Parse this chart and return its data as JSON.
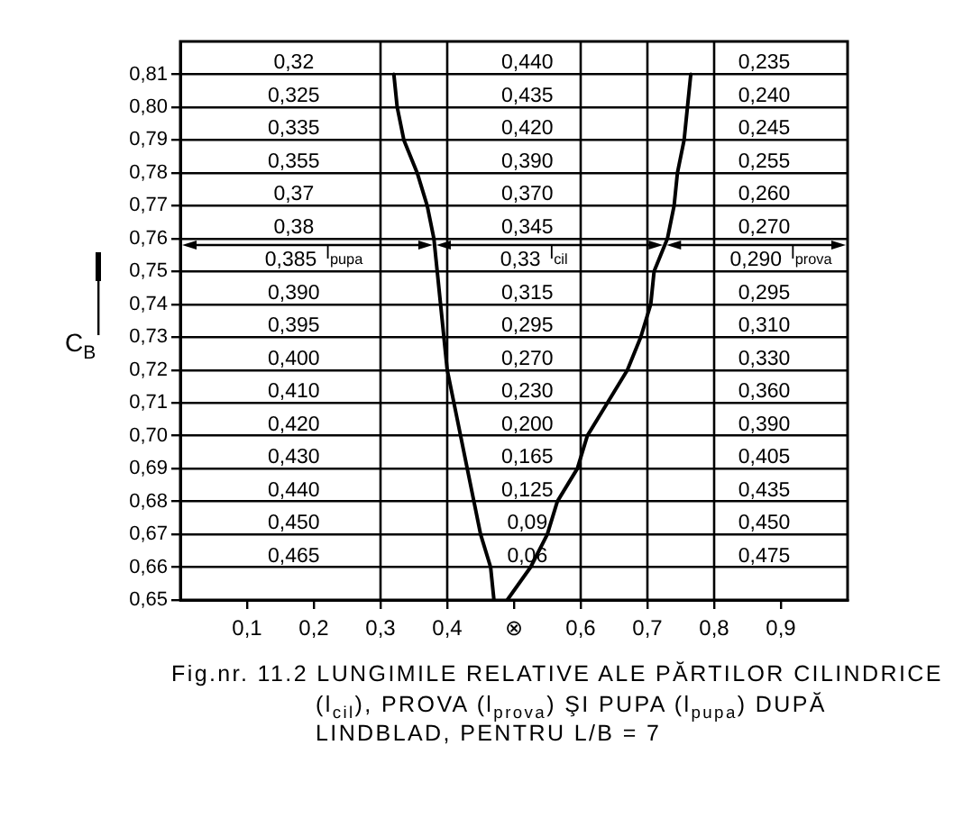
{
  "chart_data": {
    "type": "line",
    "title": "Fig.nr. 11.2 LUNGIMILE RELATIVE ALE PĂRTILOR CILINDRICE (l$_{cil}$), PROVA (l$_{prova}$) ŞI PUPA (l$_{pupa}$) DUPĂ LINDBLAD, PENTRU L/B = 7",
    "ylabel": "C$_{B}$",
    "series": [
      {
        "color": "#000000",
        "x": [
          0.32,
          0.325,
          0.335,
          0.355,
          0.37,
          0.38,
          0.385,
          0.39,
          0.395,
          0.4,
          0.41,
          0.42,
          0.43,
          0.44,
          0.45,
          0.465,
          0.47
        ],
        "values": [
          0.81,
          0.8,
          0.79,
          0.78,
          0.77,
          0.76,
          0.75,
          0.74,
          0.73,
          0.72,
          0.71,
          0.7,
          0.69,
          0.68,
          0.67,
          0.66,
          0.65
        ]
      },
      {
        "color": "#000000",
        "x": [
          0.765,
          0.76,
          0.755,
          0.745,
          0.74,
          0.73,
          0.71,
          0.705,
          0.69,
          0.67,
          0.64,
          0.61,
          0.595,
          0.565,
          0.55,
          0.525,
          0.49
        ],
        "values": [
          0.81,
          0.8,
          0.79,
          0.78,
          0.77,
          0.76,
          0.75,
          0.74,
          0.73,
          0.72,
          0.71,
          0.7,
          0.69,
          0.68,
          0.67,
          0.66,
          0.65
        ]
      }
    ],
    "xlim": [
      0,
      1
    ],
    "xticks": [
      {
        "value": 0.1,
        "label": "0,1"
      },
      {
        "value": 0.2,
        "label": "0,2"
      },
      {
        "value": 0.3,
        "label": "0,3"
      },
      {
        "value": 0.4,
        "label": "0,4"
      },
      {
        "value": 0.5,
        "label": "⊗"
      },
      {
        "value": 0.6,
        "label": "0,6"
      },
      {
        "value": 0.7,
        "label": "0,7"
      },
      {
        "value": 0.8,
        "label": "0,8"
      },
      {
        "value": 0.9,
        "label": "0,9"
      }
    ],
    "ylim": [
      0.65,
      0.82
    ],
    "yticks": [
      {
        "value": 0.65,
        "label": "0,65"
      },
      {
        "value": 0.66,
        "label": "0,66"
      },
      {
        "value": 0.67,
        "label": "0,67"
      },
      {
        "value": 0.68,
        "label": "0,68"
      },
      {
        "value": 0.69,
        "label": "0,69"
      },
      {
        "value": 0.7,
        "label": "0,70"
      },
      {
        "value": 0.71,
        "label": "0,71"
      },
      {
        "value": 0.72,
        "label": "0,72"
      },
      {
        "value": 0.73,
        "label": "0,73"
      },
      {
        "value": 0.74,
        "label": "0,74"
      },
      {
        "value": 0.75,
        "label": "0,75"
      },
      {
        "value": 0.76,
        "label": "0,76"
      },
      {
        "value": 0.77,
        "label": "0,77"
      },
      {
        "value": 0.78,
        "label": "0,78"
      },
      {
        "value": 0.79,
        "label": "0,79"
      },
      {
        "value": 0.8,
        "label": "0,80"
      },
      {
        "value": 0.81,
        "label": "0,81"
      }
    ],
    "grid": "y",
    "line_style": "solid",
    "ref_lines": [
      {
        "axis": "x",
        "value": 0.3,
        "color": "#000000"
      },
      {
        "axis": "x",
        "value": 0.4,
        "color": "#000000"
      },
      {
        "axis": "x",
        "value": 0.6,
        "color": "#000000"
      },
      {
        "axis": "x",
        "value": 0.7,
        "color": "#000000"
      },
      {
        "axis": "x",
        "value": 0.8,
        "color": "#000000"
      }
    ],
    "annotations": [
      "0,32",
      "0,325",
      "0,335",
      "0,355",
      "0,37",
      "0,38",
      "0,385",
      "0,390",
      "0,395",
      "0,400",
      "0,410",
      "0,420",
      "0,430",
      "0,440",
      "0,450",
      "0,465",
      "0,440",
      "0,435",
      "0,420",
      "0,390",
      "0,370",
      "0,345",
      "0,33",
      "0,315",
      "0,295",
      "0,270",
      "0,230",
      "0,200",
      "0,165",
      "0,125",
      "0,09",
      "0,06",
      "0,235",
      "0,240",
      "0,245",
      "0,255",
      "0,260",
      "0,270",
      "0,290",
      "0,295",
      "0,310",
      "0,330",
      "0,360",
      "0,390",
      "0,405",
      "0,435",
      "0,450",
      "0,475",
      "l$_{pupa}$",
      "l$_{cil}$",
      "l$_{prova}$"
    ]
  }
}
